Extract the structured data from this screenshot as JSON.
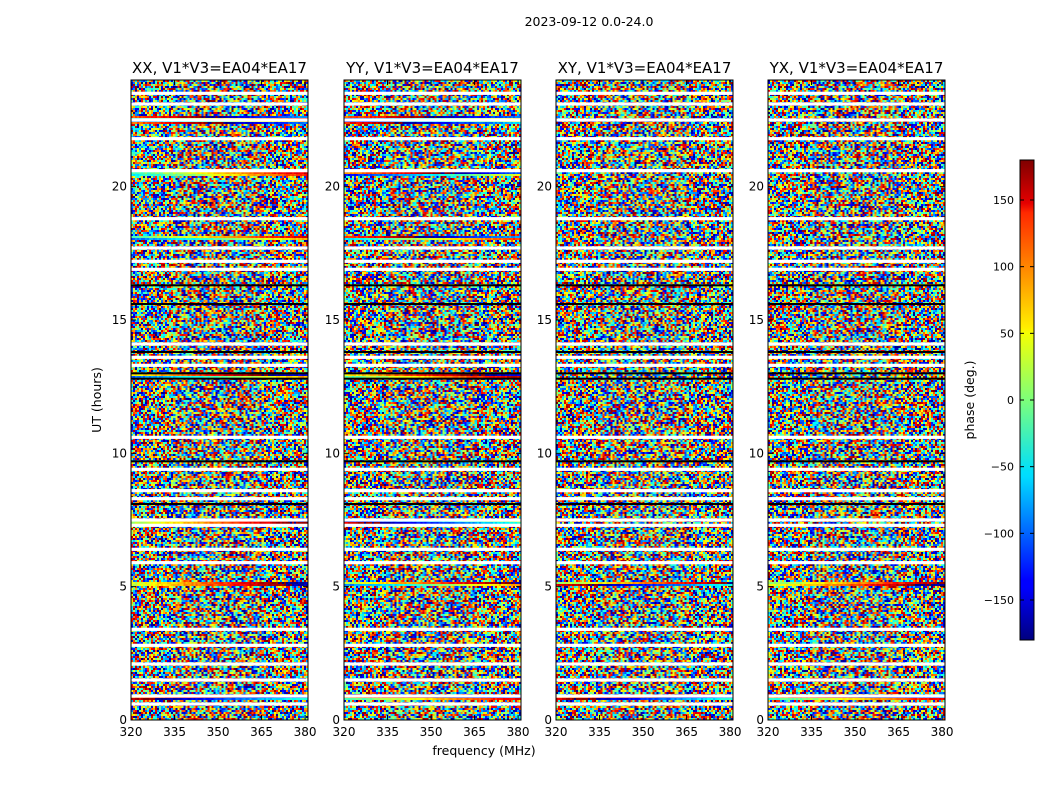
{
  "chart_data": {
    "type": "heatmap",
    "title": "2023-09-12 0.0-24.0",
    "xlabel": "frequency (MHz)",
    "ylabel": "UT (hours)",
    "xlim": [
      320,
      381
    ],
    "ylim": [
      0,
      24
    ],
    "xticks": [
      320,
      335,
      350,
      365,
      380
    ],
    "yticks": [
      0,
      5,
      10,
      15,
      20
    ],
    "panels": [
      {
        "title": "XX, V1*V3=EA04*EA17"
      },
      {
        "title": "YY, V1*V3=EA04*EA17"
      },
      {
        "title": "XY, V1*V3=EA04*EA17"
      },
      {
        "title": "YX, V1*V3=EA04*EA17"
      }
    ],
    "colorbar": {
      "label": "phase (deg.)",
      "range": [
        -180,
        180
      ],
      "ticks": [
        -150,
        -100,
        -50,
        0,
        50,
        100,
        150
      ],
      "colormap": "jet"
    },
    "gap_rows_hours": [
      0.6,
      0.9,
      1.5,
      2.1,
      2.8,
      3.4,
      5.9,
      6.4,
      7.3,
      7.5,
      8.3,
      8.6,
      9.4,
      10.6,
      13.3,
      13.6,
      14.1,
      16.9,
      17.2,
      17.7,
      18.8,
      20.6,
      21.8,
      22.5,
      23.1,
      23.5
    ],
    "dark_rows_hours": [
      8.1,
      9.7,
      12.8,
      13.0,
      13.8,
      15.6,
      16.3
    ],
    "coherent_rows_hours": [
      0.8,
      5.1,
      7.4,
      12.9,
      18.1,
      20.5,
      22.4,
      22.6
    ]
  }
}
